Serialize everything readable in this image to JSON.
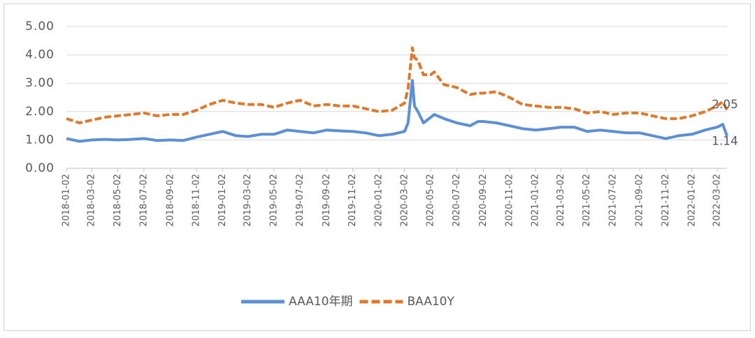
{
  "chart_data": {
    "type": "line",
    "x": [
      "2018-01-02",
      "2018-02-02",
      "2018-03-02",
      "2018-04-02",
      "2018-05-02",
      "2018-06-02",
      "2018-07-02",
      "2018-08-02",
      "2018-09-02",
      "2018-10-02",
      "2018-11-02",
      "2018-12-02",
      "2019-01-02",
      "2019-02-02",
      "2019-03-02",
      "2019-04-02",
      "2019-05-02",
      "2019-06-02",
      "2019-07-02",
      "2019-08-02",
      "2019-09-02",
      "2019-10-02",
      "2019-11-02",
      "2019-12-02",
      "2020-01-02",
      "2020-02-02",
      "2020-03-02",
      "2020-03-10",
      "2020-03-20",
      "2020-03-25",
      "2020-04-02",
      "2020-04-15",
      "2020-05-02",
      "2020-05-10",
      "2020-06-02",
      "2020-07-02",
      "2020-08-02",
      "2020-08-20",
      "2020-09-02",
      "2020-10-02",
      "2020-11-02",
      "2020-12-02",
      "2021-01-02",
      "2021-02-02",
      "2021-03-02",
      "2021-04-02",
      "2021-05-02",
      "2021-06-02",
      "2021-07-02",
      "2021-08-02",
      "2021-09-02",
      "2021-10-02",
      "2021-11-02",
      "2021-12-02",
      "2022-01-02",
      "2022-02-02",
      "2022-03-02",
      "2022-03-15",
      "2022-03-25"
    ],
    "series": [
      {
        "name": "AAA10年期",
        "color": "#5b8fd6",
        "dash": false,
        "values": [
          1.05,
          0.95,
          1.0,
          1.02,
          1.0,
          1.02,
          1.05,
          0.98,
          1.0,
          0.98,
          1.1,
          1.2,
          1.3,
          1.15,
          1.12,
          1.2,
          1.2,
          1.35,
          1.3,
          1.25,
          1.35,
          1.32,
          1.3,
          1.25,
          1.15,
          1.2,
          1.3,
          1.6,
          3.1,
          2.2,
          2.0,
          1.6,
          1.8,
          1.9,
          1.75,
          1.6,
          1.5,
          1.65,
          1.65,
          1.6,
          1.5,
          1.4,
          1.35,
          1.4,
          1.45,
          1.45,
          1.3,
          1.35,
          1.3,
          1.25,
          1.25,
          1.15,
          1.05,
          1.15,
          1.2,
          1.35,
          1.45,
          1.55,
          1.14
        ]
      },
      {
        "name": "BAA10Y",
        "color": "#e0782a",
        "dash": true,
        "values": [
          1.75,
          1.6,
          1.7,
          1.8,
          1.85,
          1.9,
          1.95,
          1.85,
          1.9,
          1.9,
          2.05,
          2.25,
          2.4,
          2.3,
          2.25,
          2.25,
          2.15,
          2.3,
          2.4,
          2.2,
          2.25,
          2.2,
          2.2,
          2.1,
          2.0,
          2.05,
          2.3,
          2.8,
          4.25,
          3.9,
          3.8,
          3.3,
          3.3,
          3.4,
          2.95,
          2.85,
          2.6,
          2.65,
          2.65,
          2.7,
          2.5,
          2.25,
          2.2,
          2.15,
          2.15,
          2.1,
          1.95,
          2.0,
          1.9,
          1.95,
          1.95,
          1.85,
          1.75,
          1.75,
          1.85,
          2.0,
          2.2,
          2.35,
          2.05
        ]
      }
    ],
    "xlim": [
      "2018-01-02",
      "2022-03-25"
    ],
    "xticks": [
      "2018-01-02",
      "2018-03-02",
      "2018-05-02",
      "2018-07-02",
      "2018-09-02",
      "2018-11-02",
      "2019-01-02",
      "2019-03-02",
      "2019-05-02",
      "2019-07-02",
      "2019-09-02",
      "2019-11-02",
      "2020-01-02",
      "2020-03-02",
      "2020-05-02",
      "2020-07-02",
      "2020-09-02",
      "2020-11-02",
      "2021-01-02",
      "2021-03-02",
      "2021-05-02",
      "2021-07-02",
      "2021-09-02",
      "2021-11-02",
      "2022-01-02",
      "2022-03-02"
    ],
    "ylim": [
      0,
      5
    ],
    "yticks": [
      {
        "value": 0,
        "label": "0.00"
      },
      {
        "value": 1,
        "label": "1.00"
      },
      {
        "value": 2,
        "label": "2.00"
      },
      {
        "value": 3,
        "label": "3.00"
      },
      {
        "value": 4,
        "label": "4.00"
      },
      {
        "value": 5,
        "label": "5.00"
      }
    ],
    "grid": true
  }
}
